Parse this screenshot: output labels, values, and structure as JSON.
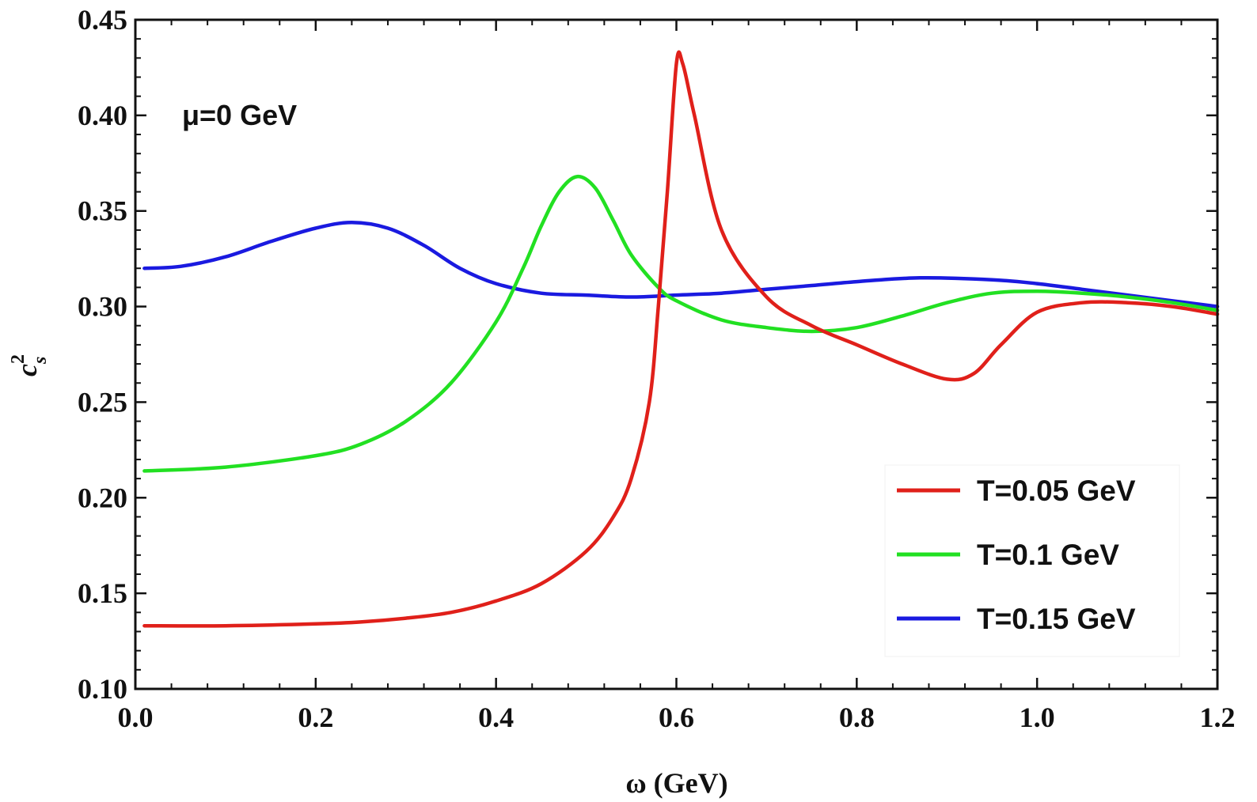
{
  "chart_data": {
    "type": "line",
    "xlabel": "ω (GeV)",
    "ylabel": "c",
    "ylabel_sup": "2",
    "ylabel_sub": "s",
    "xlim": [
      0.0,
      1.2
    ],
    "ylim": [
      0.1,
      0.45
    ],
    "xticks": [
      "0.0",
      "0.2",
      "0.4",
      "0.6",
      "0.8",
      "1.0",
      "1.2"
    ],
    "yticks": [
      "0.10",
      "0.15",
      "0.20",
      "0.25",
      "0.30",
      "0.35",
      "0.40",
      "0.45"
    ],
    "annotation": "μ=0 GeV",
    "grid": false,
    "legend_position": "bottom-right",
    "series": [
      {
        "name": "T=0.05 GeV",
        "color": "#e0201a",
        "x": [
          0.01,
          0.1,
          0.2,
          0.25,
          0.3,
          0.35,
          0.4,
          0.45,
          0.5,
          0.53,
          0.55,
          0.57,
          0.58,
          0.59,
          0.6,
          0.607,
          0.62,
          0.65,
          0.7,
          0.75,
          0.8,
          0.85,
          0.9,
          0.93,
          0.96,
          1.0,
          1.05,
          1.1,
          1.15,
          1.2
        ],
        "y": [
          0.133,
          0.133,
          0.134,
          0.135,
          0.137,
          0.14,
          0.146,
          0.155,
          0.172,
          0.19,
          0.21,
          0.25,
          0.3,
          0.36,
          0.427,
          0.427,
          0.4,
          0.34,
          0.305,
          0.29,
          0.28,
          0.27,
          0.262,
          0.265,
          0.28,
          0.297,
          0.302,
          0.302,
          0.3,
          0.296
        ]
      },
      {
        "name": "T=0.1 GeV",
        "color": "#22e022",
        "x": [
          0.01,
          0.1,
          0.2,
          0.25,
          0.3,
          0.35,
          0.4,
          0.43,
          0.45,
          0.47,
          0.49,
          0.51,
          0.53,
          0.55,
          0.58,
          0.6,
          0.65,
          0.7,
          0.75,
          0.8,
          0.85,
          0.9,
          0.95,
          1.0,
          1.05,
          1.1,
          1.15,
          1.2
        ],
        "y": [
          0.214,
          0.216,
          0.222,
          0.228,
          0.24,
          0.26,
          0.292,
          0.32,
          0.342,
          0.36,
          0.368,
          0.362,
          0.345,
          0.327,
          0.31,
          0.303,
          0.293,
          0.289,
          0.287,
          0.289,
          0.295,
          0.302,
          0.307,
          0.308,
          0.307,
          0.305,
          0.302,
          0.298
        ]
      },
      {
        "name": "T=0.15 GeV",
        "color": "#1a1ae0",
        "x": [
          0.01,
          0.05,
          0.1,
          0.15,
          0.2,
          0.24,
          0.28,
          0.32,
          0.36,
          0.4,
          0.45,
          0.5,
          0.55,
          0.6,
          0.65,
          0.7,
          0.75,
          0.8,
          0.87,
          0.95,
          1.0,
          1.05,
          1.1,
          1.15,
          1.2
        ],
        "y": [
          0.32,
          0.321,
          0.326,
          0.334,
          0.341,
          0.344,
          0.341,
          0.332,
          0.32,
          0.312,
          0.307,
          0.306,
          0.305,
          0.306,
          0.307,
          0.309,
          0.311,
          0.313,
          0.315,
          0.314,
          0.312,
          0.309,
          0.306,
          0.303,
          0.3
        ]
      }
    ]
  }
}
